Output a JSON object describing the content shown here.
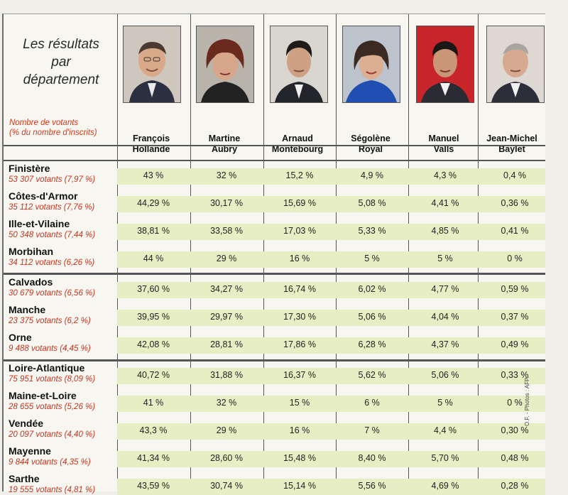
{
  "title_lines": [
    "Les résultats",
    "par",
    "département"
  ],
  "legend_lines": [
    "Nombre de votants",
    "(% du nombre d'inscrits)"
  ],
  "credit": "O.F. - Photos : AFP.",
  "candidates": [
    {
      "first": "François",
      "last": "Hollande"
    },
    {
      "first": "Martine",
      "last": "Aubry"
    },
    {
      "first": "Arnaud",
      "last": "Montebourg"
    },
    {
      "first": "Ségolène",
      "last": "Royal"
    },
    {
      "first": "Manuel",
      "last": "Valls"
    },
    {
      "first": "Jean-Michel",
      "last": "Baylet"
    }
  ],
  "colors": {
    "band": "#e8eec3",
    "votes_text": "#c8331c",
    "ink": "#1a1a1a"
  },
  "rows": [
    {
      "dept": "Finistère",
      "votes": "53 307 votants (7,97 %)",
      "values": [
        "43 %",
        "32 %",
        "15,2 %",
        "4,9 %",
        "4,3 %",
        "0,4 %"
      ]
    },
    {
      "dept": "Côtes-d'Armor",
      "votes": "35 112 votants (7,76 %)",
      "values": [
        "44,29 %",
        "30,17 %",
        "15,69 %",
        "5,08 %",
        "4,41 %",
        "0,36 %"
      ]
    },
    {
      "dept": "Ille-et-Vilaine",
      "votes": "50 348 votants (7,44 %)",
      "values": [
        "38,81 %",
        "33,58 %",
        "17,03 %",
        "5,33 %",
        "4,85 %",
        "0,41 %"
      ]
    },
    {
      "dept": "Morbihan",
      "votes": "34 112 votants (6,26 %)",
      "values": [
        "44 %",
        "29 %",
        "16 %",
        "5 %",
        "5 %",
        "0 %"
      ]
    },
    {
      "dept": "Calvados",
      "votes": "30 679 votants (6,56 %)",
      "values": [
        "37,60 %",
        "34,27 %",
        "16,74 %",
        "6,02 %",
        "4,77 %",
        "0,59 %"
      ]
    },
    {
      "dept": "Manche",
      "votes": "23 375 votants (6,2 %)",
      "values": [
        "39,95 %",
        "29,97 %",
        "17,30 %",
        "5,06 %",
        "4,04 %",
        "0,37 %"
      ]
    },
    {
      "dept": "Orne",
      "votes": "9 488 votants (4,45 %)",
      "values": [
        "42,08 %",
        "28,81 %",
        "17,86 %",
        "6,28 %",
        "4,37 %",
        "0,49 %"
      ]
    },
    {
      "dept": "Loire-Atlantique",
      "votes": "75 951 votants (8,09 %)",
      "values": [
        "40,72 %",
        "31,88 %",
        "16,37 %",
        "5,62 %",
        "5,06 %",
        "0,33 %"
      ]
    },
    {
      "dept": "Maine-et-Loire",
      "votes": "28 655 votants (5,26 %)",
      "values": [
        "41 %",
        "32 %",
        "15 %",
        "6 %",
        "5 %",
        "0 %"
      ]
    },
    {
      "dept": "Vendée",
      "votes": "20 097 votants (4,40 %)",
      "values": [
        "43,3 %",
        "29 %",
        "16 %",
        "7 %",
        "4,4 %",
        "0,30 %"
      ]
    },
    {
      "dept": "Mayenne",
      "votes": "9 844 votants (4,35 %)",
      "values": [
        "41,34 %",
        "28,60 %",
        "15,48 %",
        "8,40 %",
        "5,70 %",
        "0,48 %"
      ]
    },
    {
      "dept": "Sarthe",
      "votes": "19 555 votants (4,81 %)",
      "values": [
        "43,59 %",
        "30,74 %",
        "15,14 %",
        "5,56 %",
        "4,69 %",
        "0,28 %"
      ]
    }
  ]
}
